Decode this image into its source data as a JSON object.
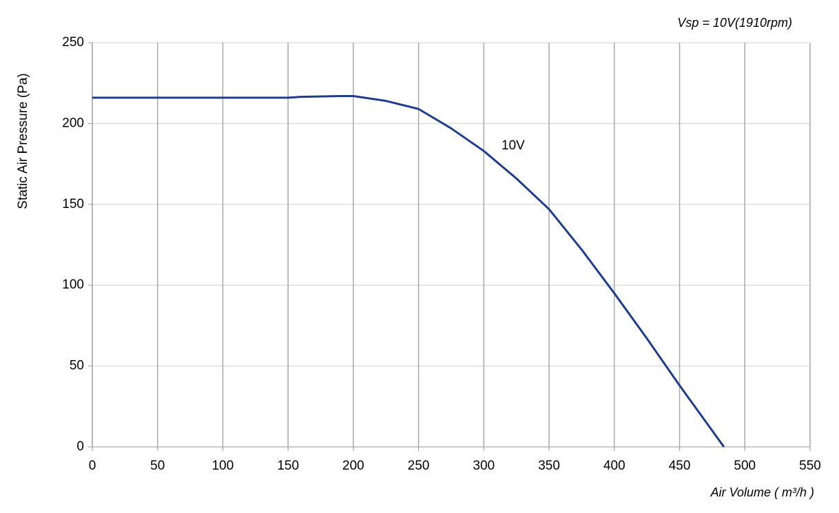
{
  "chart_data": {
    "type": "line",
    "title": "Vsp = 10V(1910rpm)",
    "x_label": "Air Volume ( m³/h )",
    "y_label": "Static Air Pressure  (Pa)",
    "annotation": "10V",
    "x": [
      0,
      50,
      100,
      150,
      160,
      190,
      200,
      225,
      250,
      275,
      300,
      325,
      350,
      375,
      400,
      425,
      450,
      484
    ],
    "series": [
      {
        "name": "10V",
        "color": "#1f3d8c",
        "values": [
          216,
          216,
          216,
          216,
          216.5,
          217,
          217,
          214,
          209,
          197,
          183,
          166,
          147,
          122,
          95,
          67,
          38,
          0
        ]
      }
    ],
    "xlim": [
      0,
      550
    ],
    "xticks": [
      0,
      50,
      100,
      150,
      200,
      250,
      300,
      350,
      400,
      450,
      500,
      550
    ],
    "ylim": [
      0,
      250
    ],
    "yticks": [
      0,
      50,
      100,
      150,
      200,
      250
    ],
    "grid": true
  }
}
